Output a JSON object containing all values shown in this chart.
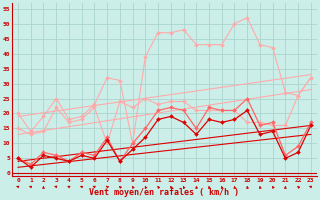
{
  "xlabel": "Vent moyen/en rafales ( km/h )",
  "bg_color": "#cceee8",
  "grid_color": "#aad4ce",
  "x_ticks": [
    0,
    1,
    2,
    3,
    4,
    5,
    6,
    7,
    8,
    9,
    10,
    11,
    12,
    13,
    14,
    15,
    16,
    17,
    18,
    19,
    20,
    21,
    22,
    23
  ],
  "y_ticks": [
    0,
    5,
    10,
    15,
    20,
    25,
    30,
    35,
    40,
    45,
    50,
    55
  ],
  "ylim": [
    -1,
    57
  ],
  "xlim": [
    -0.5,
    23.5
  ],
  "series": [
    {
      "color": "#ffaaaa",
      "lw": 0.8,
      "marker": "D",
      "ms": 2.0,
      "data_x": [
        0,
        1,
        2,
        3,
        4,
        5,
        6,
        7,
        8,
        9,
        10,
        11,
        12,
        13,
        14,
        15,
        16,
        17,
        18,
        19,
        20,
        21,
        22,
        23
      ],
      "data_y": [
        20,
        14,
        19,
        25,
        18,
        19,
        23,
        32,
        31,
        10,
        39,
        47,
        47,
        48,
        43,
        43,
        43,
        50,
        52,
        43,
        42,
        27,
        26,
        32
      ]
    },
    {
      "color": "#ffaaaa",
      "lw": 0.8,
      "marker": "D",
      "ms": 2.0,
      "data_x": [
        0,
        1,
        2,
        3,
        4,
        5,
        6,
        7,
        8,
        9,
        10,
        11,
        12,
        13,
        14,
        15,
        16,
        17,
        18,
        19,
        20,
        21,
        22,
        23
      ],
      "data_y": [
        15,
        13,
        14,
        22,
        17,
        18,
        22,
        10,
        24,
        22,
        25,
        23,
        24,
        24,
        21,
        21,
        21,
        21,
        17,
        17,
        16,
        16,
        26,
        32
      ]
    },
    {
      "color": "#ff6666",
      "lw": 0.9,
      "marker": "D",
      "ms": 2.0,
      "data_x": [
        0,
        1,
        2,
        3,
        4,
        5,
        6,
        7,
        8,
        9,
        10,
        11,
        12,
        13,
        14,
        15,
        16,
        17,
        18,
        19,
        20,
        21,
        22,
        23
      ],
      "data_y": [
        5,
        3,
        7,
        6,
        4,
        7,
        6,
        12,
        4,
        10,
        15,
        21,
        22,
        21,
        15,
        22,
        21,
        21,
        25,
        16,
        17,
        6,
        9,
        17
      ]
    },
    {
      "color": "#dd0000",
      "lw": 0.9,
      "marker": "D",
      "ms": 2.0,
      "data_x": [
        0,
        1,
        2,
        3,
        4,
        5,
        6,
        7,
        8,
        9,
        10,
        11,
        12,
        13,
        14,
        15,
        16,
        17,
        18,
        19,
        20,
        21,
        22,
        23
      ],
      "data_y": [
        5,
        2,
        6,
        5,
        4,
        6,
        5,
        11,
        4,
        8,
        12,
        18,
        19,
        17,
        13,
        18,
        17,
        18,
        21,
        13,
        14,
        5,
        7,
        16
      ]
    },
    {
      "color": "#dd0000",
      "lw": 0.8,
      "marker": null,
      "ms": 0,
      "data_x": [
        0,
        23
      ],
      "data_y": [
        2,
        13
      ]
    },
    {
      "color": "#dd0000",
      "lw": 0.8,
      "marker": null,
      "ms": 0,
      "data_x": [
        0,
        23
      ],
      "data_y": [
        4,
        16
      ]
    },
    {
      "color": "#ffaaaa",
      "lw": 0.8,
      "marker": null,
      "ms": 0,
      "data_x": [
        0,
        23
      ],
      "data_y": [
        13,
        28
      ]
    },
    {
      "color": "#ffaaaa",
      "lw": 0.8,
      "marker": null,
      "ms": 0,
      "data_x": [
        0,
        23
      ],
      "data_y": [
        19,
        33
      ]
    }
  ],
  "arrows_x": [
    0,
    1,
    2,
    3,
    4,
    5,
    6,
    7,
    8,
    9,
    10,
    11,
    12,
    13,
    14,
    15,
    16,
    17,
    18,
    19,
    20,
    21,
    22,
    23
  ],
  "arrow_angles": [
    225,
    220,
    180,
    230,
    220,
    220,
    225,
    210,
    200,
    195,
    190,
    195,
    195,
    190,
    185,
    185,
    185,
    185,
    185,
    185,
    195,
    180,
    200,
    225
  ]
}
